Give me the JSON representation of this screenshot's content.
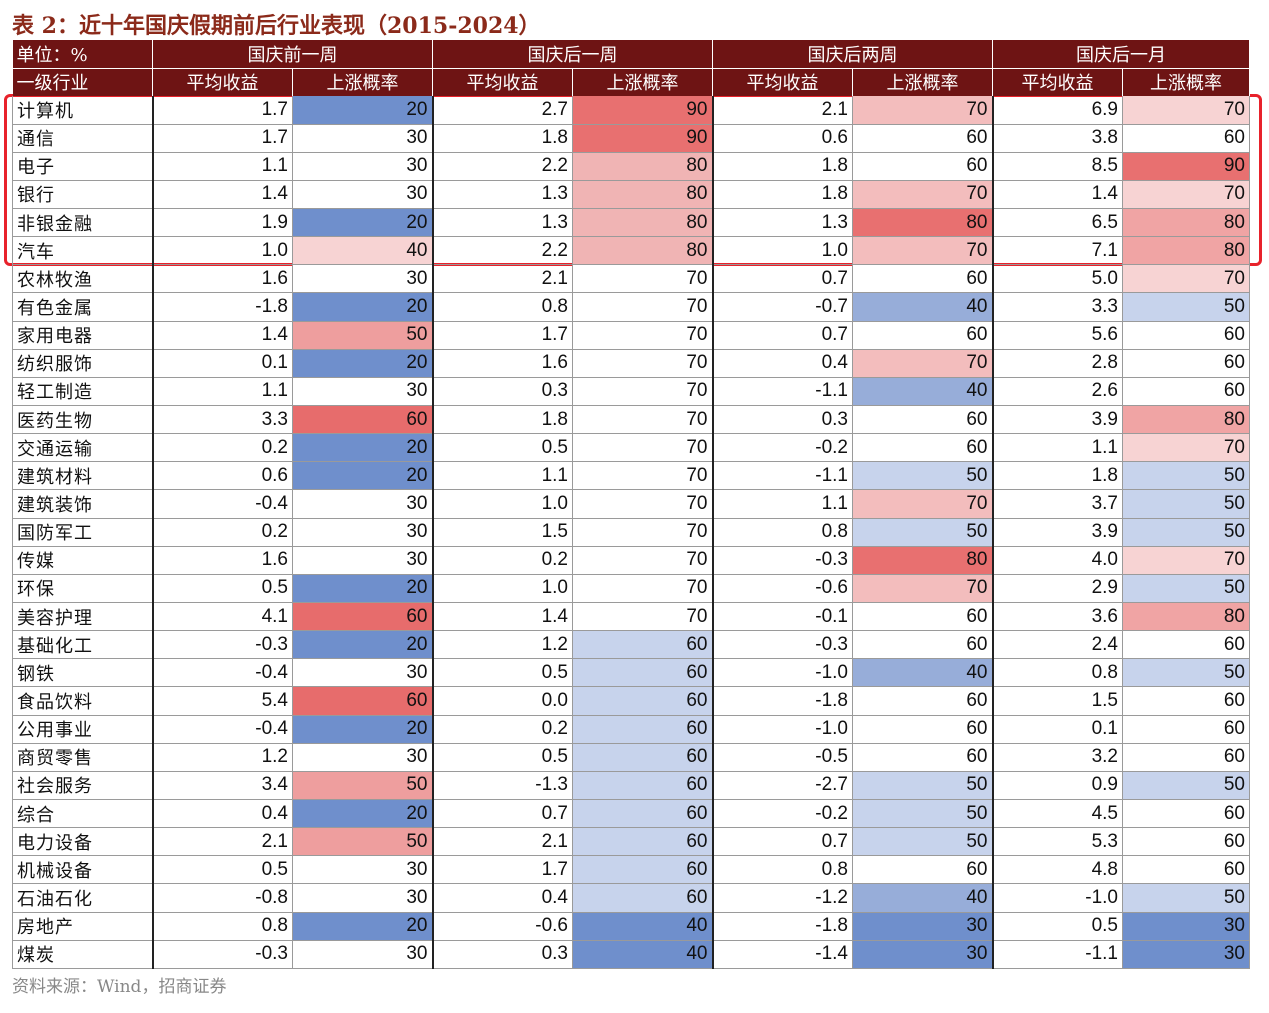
{
  "title": "表 2：近十年国庆假期前后行业表现（2015-2024）",
  "header": {
    "unit_label": "单位：%",
    "groups": [
      "国庆前一周",
      "国庆后一周",
      "国庆后两周",
      "国庆后一月"
    ],
    "industry_label": "一级行业",
    "sub_labels": [
      "平均收益",
      "上涨概率"
    ]
  },
  "colors": {
    "header_bg": "#6E1414",
    "highlight_border": "#E8222B",
    "scale": {
      "20": "#6F8FCC",
      "30": "#FFFFFF",
      "40": "#F7D3D3",
      "50": "#F0A4A4",
      "60": "#E86F6F",
      "70": "#FFFFFF",
      "80": "#F0B4B4",
      "90": "#E87070"
    }
  },
  "rows": [
    {
      "name": "计算机",
      "v": [
        "1.7",
        "20",
        "2.7",
        "90",
        "2.1",
        "70",
        "6.9",
        "70"
      ]
    },
    {
      "name": "通信",
      "v": [
        "1.7",
        "30",
        "1.8",
        "90",
        "0.6",
        "60",
        "3.8",
        "60"
      ]
    },
    {
      "name": "电子",
      "v": [
        "1.1",
        "30",
        "2.2",
        "80",
        "1.8",
        "60",
        "8.5",
        "90"
      ]
    },
    {
      "name": "银行",
      "v": [
        "1.4",
        "30",
        "1.3",
        "80",
        "1.8",
        "70",
        "1.4",
        "70"
      ]
    },
    {
      "name": "非银金融",
      "v": [
        "1.9",
        "20",
        "1.3",
        "80",
        "1.3",
        "80",
        "6.5",
        "80"
      ]
    },
    {
      "name": "汽车",
      "v": [
        "1.0",
        "40",
        "2.2",
        "80",
        "1.0",
        "70",
        "7.1",
        "80"
      ]
    },
    {
      "name": "农林牧渔",
      "v": [
        "1.6",
        "30",
        "2.1",
        "70",
        "0.7",
        "60",
        "5.0",
        "70"
      ]
    },
    {
      "name": "有色金属",
      "v": [
        "-1.8",
        "20",
        "0.8",
        "70",
        "-0.7",
        "40",
        "3.3",
        "50"
      ]
    },
    {
      "name": "家用电器",
      "v": [
        "1.4",
        "50",
        "1.7",
        "70",
        "0.7",
        "60",
        "5.6",
        "60"
      ]
    },
    {
      "name": "纺织服饰",
      "v": [
        "0.1",
        "20",
        "1.6",
        "70",
        "0.4",
        "70",
        "2.8",
        "60"
      ]
    },
    {
      "name": "轻工制造",
      "v": [
        "1.1",
        "30",
        "0.3",
        "70",
        "-1.1",
        "40",
        "2.6",
        "60"
      ]
    },
    {
      "name": "医药生物",
      "v": [
        "3.3",
        "60",
        "1.8",
        "70",
        "0.3",
        "60",
        "3.9",
        "80"
      ]
    },
    {
      "name": "交通运输",
      "v": [
        "0.2",
        "20",
        "0.5",
        "70",
        "-0.2",
        "60",
        "1.1",
        "70"
      ]
    },
    {
      "name": "建筑材料",
      "v": [
        "0.6",
        "20",
        "1.1",
        "70",
        "-1.1",
        "50",
        "1.8",
        "50"
      ]
    },
    {
      "name": "建筑装饰",
      "v": [
        "-0.4",
        "30",
        "1.0",
        "70",
        "1.1",
        "70",
        "3.7",
        "50"
      ]
    },
    {
      "name": "国防军工",
      "v": [
        "0.2",
        "30",
        "1.5",
        "70",
        "0.8",
        "50",
        "3.9",
        "50"
      ]
    },
    {
      "name": "传媒",
      "v": [
        "1.6",
        "30",
        "0.2",
        "70",
        "-0.3",
        "80",
        "4.0",
        "70"
      ]
    },
    {
      "name": "环保",
      "v": [
        "0.5",
        "20",
        "1.0",
        "70",
        "-0.6",
        "70",
        "2.9",
        "50"
      ]
    },
    {
      "name": "美容护理",
      "v": [
        "4.1",
        "60",
        "1.4",
        "70",
        "-0.1",
        "60",
        "3.6",
        "80"
      ]
    },
    {
      "name": "基础化工",
      "v": [
        "-0.3",
        "20",
        "1.2",
        "60",
        "-0.3",
        "60",
        "2.4",
        "60"
      ]
    },
    {
      "name": "钢铁",
      "v": [
        "-0.4",
        "30",
        "0.5",
        "60",
        "-1.0",
        "40",
        "0.8",
        "50"
      ]
    },
    {
      "name": "食品饮料",
      "v": [
        "5.4",
        "60",
        "0.0",
        "60",
        "-1.8",
        "60",
        "1.5",
        "60"
      ]
    },
    {
      "name": "公用事业",
      "v": [
        "-0.4",
        "20",
        "0.2",
        "60",
        "-1.0",
        "60",
        "0.1",
        "60"
      ]
    },
    {
      "name": "商贸零售",
      "v": [
        "1.2",
        "30",
        "0.5",
        "60",
        "-0.5",
        "60",
        "3.2",
        "60"
      ]
    },
    {
      "name": "社会服务",
      "v": [
        "3.4",
        "50",
        "-1.3",
        "60",
        "-2.7",
        "50",
        "0.9",
        "50"
      ]
    },
    {
      "name": "综合",
      "v": [
        "0.4",
        "20",
        "0.7",
        "60",
        "-0.2",
        "50",
        "4.5",
        "60"
      ]
    },
    {
      "name": "电力设备",
      "v": [
        "2.1",
        "50",
        "2.1",
        "60",
        "0.7",
        "50",
        "5.3",
        "60"
      ]
    },
    {
      "name": "机械设备",
      "v": [
        "0.5",
        "30",
        "1.7",
        "60",
        "0.8",
        "60",
        "4.8",
        "60"
      ]
    },
    {
      "name": "石油石化",
      "v": [
        "-0.8",
        "30",
        "0.4",
        "60",
        "-1.2",
        "40",
        "-1.0",
        "50"
      ]
    },
    {
      "name": "房地产",
      "v": [
        "0.8",
        "20",
        "-0.6",
        "40",
        "-1.8",
        "30",
        "0.5",
        "30"
      ]
    },
    {
      "name": "煤炭",
      "v": [
        "-0.3",
        "30",
        "0.3",
        "40",
        "-1.4",
        "30",
        "-1.1",
        "30"
      ]
    }
  ],
  "source": "资料来源：Wind，招商证券"
}
